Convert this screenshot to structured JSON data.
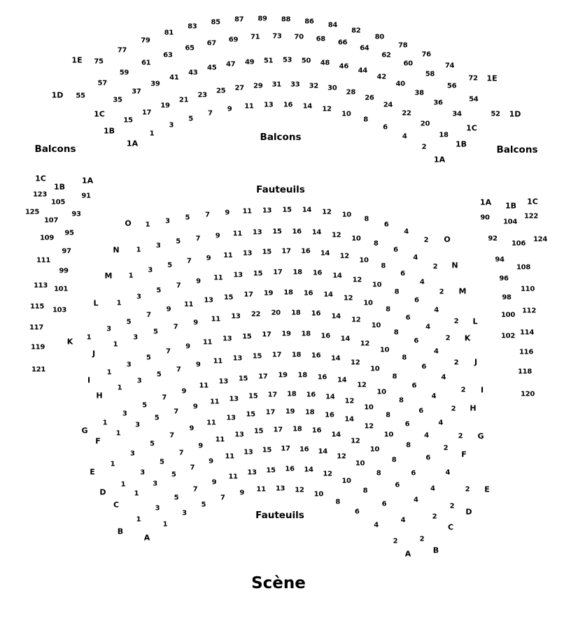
{
  "stage": {
    "label": "Scène"
  },
  "section_labels": {
    "balcons_left": "Balcons",
    "balcons_center": "Balcons",
    "balcons_right": "Balcons",
    "fauteuils_top": "Fauteuils",
    "fauteuils_bottom": "Fauteuils"
  },
  "text_color": "#000000",
  "background_color": "#ffffff",
  "balcony": {
    "rows": [
      {
        "id": "1E",
        "left_label": "1E",
        "right_label": "1E",
        "seats": [
          75,
          77,
          79,
          81,
          83,
          85,
          87,
          89,
          88,
          86,
          84,
          82,
          80,
          78,
          76,
          74,
          72
        ]
      },
      {
        "id": "1D",
        "left_label": "1D",
        "right_label": "1D",
        "seats": [
          55,
          57,
          59,
          61,
          63,
          65,
          67,
          69,
          71,
          73,
          70,
          68,
          66,
          64,
          62,
          60,
          58,
          56,
          54,
          52
        ]
      },
      {
        "id": "1C",
        "left_label": "1C",
        "right_label": "1C",
        "seats": [
          35,
          37,
          39,
          41,
          43,
          45,
          47,
          49,
          51,
          53,
          50,
          48,
          46,
          44,
          42,
          40,
          38,
          36,
          34
        ]
      },
      {
        "id": "1B",
        "left_label": "1B",
        "right_label": "1B",
        "seats": [
          15,
          17,
          19,
          21,
          23,
          25,
          27,
          29,
          31,
          33,
          32,
          30,
          28,
          26,
          24,
          22,
          20,
          18
        ]
      },
      {
        "id": "1A",
        "left_label": "1A",
        "right_label": "1A",
        "seats": [
          1,
          3,
          5,
          7,
          9,
          11,
          13,
          16,
          14,
          12,
          10,
          8,
          6,
          4,
          2
        ]
      }
    ]
  },
  "orchestra": {
    "rows": [
      {
        "letter": "O",
        "seats": [
          1,
          3,
          5,
          7,
          9,
          11,
          13,
          15,
          14,
          12,
          10,
          8,
          6,
          4,
          2
        ]
      },
      {
        "letter": "N",
        "seats": [
          1,
          3,
          5,
          7,
          9,
          11,
          13,
          15,
          16,
          14,
          12,
          10,
          8,
          6,
          4,
          2
        ]
      },
      {
        "letter": "M",
        "seats": [
          1,
          3,
          5,
          7,
          9,
          11,
          13,
          15,
          17,
          16,
          14,
          12,
          10,
          8,
          6,
          4,
          2
        ]
      },
      {
        "letter": "L",
        "seats": [
          1,
          3,
          5,
          7,
          9,
          11,
          13,
          15,
          17,
          18,
          16,
          14,
          12,
          10,
          8,
          6,
          4,
          2
        ]
      },
      {
        "letter": "K",
        "seats": [
          1,
          3,
          5,
          7,
          9,
          11,
          13,
          15,
          17,
          19,
          18,
          16,
          14,
          12,
          10,
          8,
          6,
          4,
          2
        ]
      },
      {
        "letter": "J",
        "seats": [
          1,
          3,
          5,
          7,
          9,
          11,
          13,
          22,
          20,
          18,
          16,
          14,
          12,
          10,
          8,
          6,
          4,
          2
        ]
      },
      {
        "letter": "I",
        "seats": [
          1,
          3,
          5,
          7,
          9,
          11,
          13,
          15,
          17,
          19,
          18,
          16,
          14,
          12,
          10,
          8,
          6,
          4,
          2
        ]
      },
      {
        "letter": "H",
        "seats": [
          1,
          3,
          5,
          7,
          9,
          11,
          13,
          15,
          17,
          18,
          16,
          14,
          12,
          10,
          8,
          6,
          4,
          2
        ]
      },
      {
        "letter": "G",
        "seats": [
          1,
          3,
          5,
          7,
          9,
          11,
          13,
          15,
          17,
          19,
          18,
          16,
          14,
          12,
          10,
          8,
          6,
          4,
          2
        ]
      },
      {
        "letter": "F",
        "seats": [
          1,
          3,
          5,
          7,
          9,
          11,
          13,
          15,
          17,
          18,
          16,
          14,
          12,
          10,
          8,
          6,
          4,
          2
        ]
      },
      {
        "letter": "E",
        "seats": [
          1,
          3,
          5,
          7,
          9,
          11,
          13,
          15,
          17,
          19,
          18,
          16,
          14,
          12,
          10,
          8,
          6,
          4,
          2
        ]
      },
      {
        "letter": "D",
        "seats": [
          1,
          3,
          5,
          7,
          9,
          11,
          13,
          15,
          17,
          18,
          16,
          14,
          12,
          10,
          8,
          6,
          4,
          2
        ]
      },
      {
        "letter": "C",
        "seats": [
          1,
          3,
          5,
          7,
          9,
          11,
          13,
          15,
          17,
          16,
          14,
          12,
          10,
          8,
          6,
          4,
          2
        ]
      },
      {
        "letter": "B",
        "seats": [
          1,
          3,
          5,
          7,
          9,
          11,
          13,
          15,
          16,
          14,
          12,
          10,
          8,
          6,
          4,
          2
        ]
      },
      {
        "letter": "A",
        "seats": [
          1,
          3,
          5,
          7,
          9,
          11,
          13,
          12,
          10,
          8,
          6,
          4,
          2
        ]
      }
    ]
  },
  "side_sections": {
    "left": {
      "section_labels": [
        "1C",
        "1B",
        "1A"
      ],
      "rows": [
        {
          "id": "1A",
          "seats": [
            91,
            93,
            95,
            97,
            99,
            101,
            103
          ]
        },
        {
          "id": "1B",
          "seats": [
            105,
            107,
            109,
            111,
            113,
            115,
            117,
            119,
            121
          ]
        },
        {
          "id": "1C",
          "seats": [
            123,
            125
          ]
        }
      ]
    },
    "right": {
      "section_labels": [
        "1A",
        "1B",
        "1C"
      ],
      "rows": [
        {
          "id": "1A",
          "seats": [
            90,
            92,
            94,
            96,
            98,
            100,
            102
          ]
        },
        {
          "id": "1B",
          "seats": [
            104,
            106,
            108,
            110,
            112,
            114,
            116,
            118,
            120
          ]
        },
        {
          "id": "1C",
          "seats": [
            122,
            124
          ]
        }
      ]
    }
  }
}
